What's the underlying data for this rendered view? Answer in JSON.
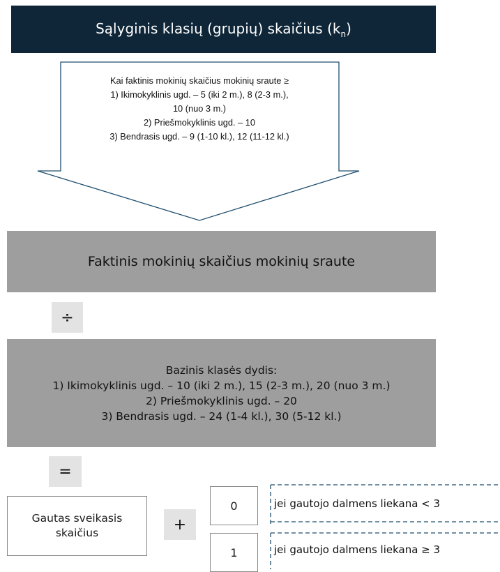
{
  "title": {
    "main": "Sąlyginis klasių (grupių) skaičius (k",
    "sub": "n",
    "close": ")"
  },
  "arrow_condition": {
    "lines": [
      "Kai faktinis mokinių skaičius mokinių sraute ≥",
      "1) Ikimokyklinis ugd. – 5 (iki 2 m.), 8 (2-3 m.),",
      "10 (nuo 3 m.)",
      "2) Priešmokyklinis ugd. – 10",
      "3) Bendrasis ugd. – 9 (1-10 kl.), 12 (11-12 kl.)"
    ]
  },
  "faktinis": {
    "text": "Faktinis mokinių skaičius mokinių sraute"
  },
  "operators": {
    "divide": "÷",
    "equals": "=",
    "plus": "+"
  },
  "bazinis": {
    "lines": [
      "Bazinis klasės dydis:",
      "1) Ikimokyklinis ugd. – 10 (iki 2 m.), 15 (2-3 m.), 20 (nuo 3 m.)",
      "2) Priešmokyklinis ugd. – 20",
      "3) Bendrasis ugd. – 24 (1-4 kl.), 30 (5-12 kl.)"
    ]
  },
  "gautas": {
    "line1": "Gautas sveikasis",
    "line2": "skaičius"
  },
  "options": [
    {
      "value": "0",
      "condition": "jei gautojo dalmens liekana < 3"
    },
    {
      "value": "1",
      "condition": "jei gautojo dalmens liekana ≥ 3"
    }
  ],
  "colors": {
    "title_bg": "#0f2638",
    "gray_box": "#9e9e9e",
    "operator_bg": "#e3e3e3",
    "dash": "#1f4e6e"
  }
}
